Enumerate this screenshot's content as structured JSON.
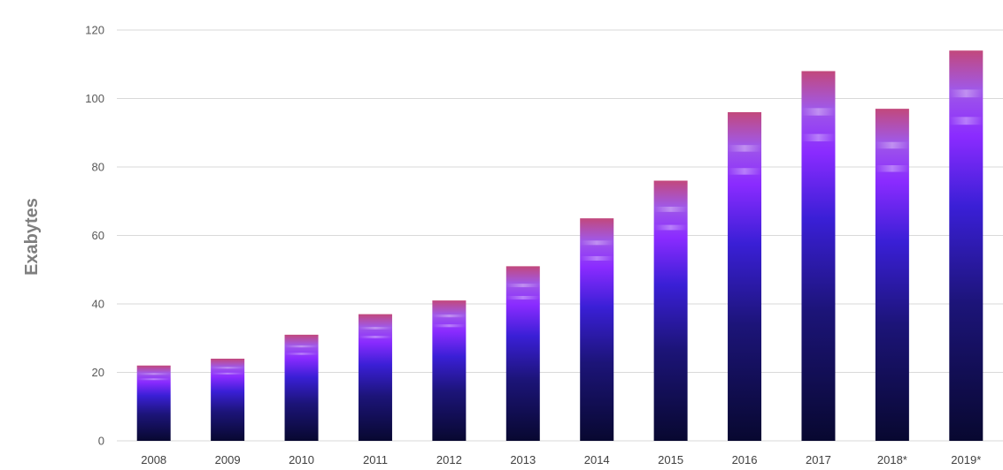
{
  "chart_data": {
    "type": "bar",
    "ylabel": "Exabytes",
    "xlabel": "",
    "title": "",
    "ylim": [
      0,
      120
    ],
    "yticks": [
      0,
      20,
      40,
      60,
      80,
      100,
      120
    ],
    "grid": true,
    "categories": [
      "2008",
      "2009",
      "2010",
      "2011",
      "2012",
      "2013",
      "2014",
      "2015",
      "2016",
      "2017",
      "2018*",
      "2019*"
    ],
    "values": [
      22,
      24,
      31,
      37,
      41,
      51,
      65,
      76,
      96,
      108,
      97,
      114
    ],
    "colors": {
      "bar_bottom": "#0b0a3e",
      "bar_mid": "#3b1fd0",
      "bar_violet": "#8e2cff",
      "bar_top": "#c0487a",
      "grid": "#d9d9d9"
    }
  }
}
